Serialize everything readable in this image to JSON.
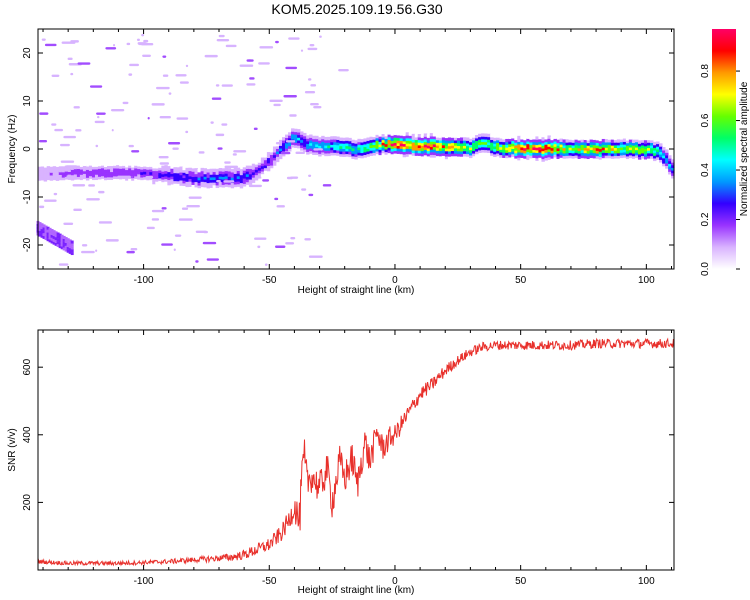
{
  "title": "KOM5.2025.109.19.56.G30",
  "chart_data": [
    {
      "type": "heatmap",
      "xlabel": "Height of straight line (km)",
      "ylabel": "Frequency (Hz)",
      "xlim": [
        -142,
        111
      ],
      "ylim": [
        -25,
        25
      ],
      "xticks": [
        -100,
        -50,
        0,
        50,
        100
      ],
      "yticks": [
        -20,
        -10,
        0,
        10,
        20
      ],
      "colorbar": {
        "label": "Normalized spectral amplitude",
        "range": [
          0.0,
          0.97
        ],
        "ticks": [
          0.0,
          0.2,
          0.4,
          0.6,
          0.8
        ],
        "colormap": [
          "#ffffff",
          "#d9b3ff",
          "#9933ff",
          "#3300ff",
          "#0099ff",
          "#00ffff",
          "#00ff66",
          "#66ff00",
          "#ffff00",
          "#ff9900",
          "#ff0000",
          "#ff0066"
        ]
      },
      "ridge": {
        "x": [
          -142,
          -130,
          -120,
          -110,
          -100,
          -90,
          -80,
          -70,
          -60,
          -55,
          -50,
          -45,
          -40,
          -35,
          -30,
          -25,
          -20,
          -15,
          -10,
          -5,
          0,
          5,
          10,
          20,
          30,
          35,
          40,
          50,
          60,
          70,
          80,
          90,
          100,
          105,
          108,
          111
        ],
        "y": [
          -5.2,
          -5.0,
          -4.9,
          -4.9,
          -5.0,
          -5.5,
          -6.0,
          -6.1,
          -6.0,
          -4.5,
          -2.5,
          0.0,
          2.5,
          1.0,
          0.5,
          0.8,
          0.3,
          0.0,
          0.5,
          1.0,
          1.0,
          0.8,
          0.7,
          0.5,
          0.2,
          1.5,
          0.4,
          0.1,
          0.1,
          0.1,
          0.0,
          0.0,
          0.0,
          -0.5,
          -2.0,
          -4.5
        ],
        "amplitude": [
          0.12,
          0.15,
          0.18,
          0.18,
          0.2,
          0.25,
          0.28,
          0.3,
          0.3,
          0.25,
          0.25,
          0.3,
          0.4,
          0.35,
          0.4,
          0.45,
          0.5,
          0.45,
          0.55,
          0.7,
          0.9,
          0.85,
          0.9,
          0.8,
          0.6,
          0.55,
          0.6,
          0.85,
          0.9,
          0.6,
          0.8,
          0.6,
          0.7,
          0.5,
          0.4,
          0.3
        ]
      }
    },
    {
      "type": "line",
      "xlabel": "Height of straight line (km)",
      "ylabel": "SNR (v/v)",
      "xlim": [
        -142,
        111
      ],
      "ylim": [
        0,
        710
      ],
      "xticks": [
        -100,
        -50,
        0,
        50,
        100
      ],
      "yticks": [
        200,
        400,
        600
      ],
      "color": "#e8302b",
      "series": [
        {
          "x": [
            -142,
            -130,
            -120,
            -110,
            -100,
            -90,
            -80,
            -70,
            -65,
            -60,
            -55,
            -50,
            -45,
            -42,
            -40,
            -38,
            -37,
            -36,
            -35,
            -33,
            -30,
            -27,
            -25,
            -22,
            -20,
            -17,
            -15,
            -12,
            -10,
            -7,
            -5,
            -2,
            0,
            5,
            10,
            15,
            20,
            25,
            30,
            35,
            40,
            50,
            60,
            70,
            80,
            90,
            100,
            105,
            111
          ],
          "y": [
            25,
            20,
            20,
            20,
            22,
            25,
            30,
            35,
            38,
            45,
            60,
            75,
            110,
            150,
            190,
            140,
            270,
            330,
            260,
            280,
            240,
            300,
            200,
            320,
            270,
            330,
            250,
            380,
            320,
            410,
            360,
            390,
            400,
            460,
            520,
            550,
            590,
            620,
            645,
            660,
            665,
            665,
            665,
            665,
            670,
            670,
            670,
            670,
            670
          ],
          "noise": [
            6,
            6,
            6,
            6,
            6,
            7,
            8,
            10,
            12,
            14,
            18,
            20,
            25,
            30,
            40,
            60,
            70,
            60,
            50,
            50,
            50,
            50,
            50,
            50,
            50,
            50,
            50,
            45,
            45,
            40,
            40,
            35,
            30,
            25,
            22,
            20,
            18,
            15,
            15,
            14,
            14,
            14,
            14,
            14,
            14,
            14,
            14,
            14,
            14
          ]
        }
      ]
    }
  ]
}
